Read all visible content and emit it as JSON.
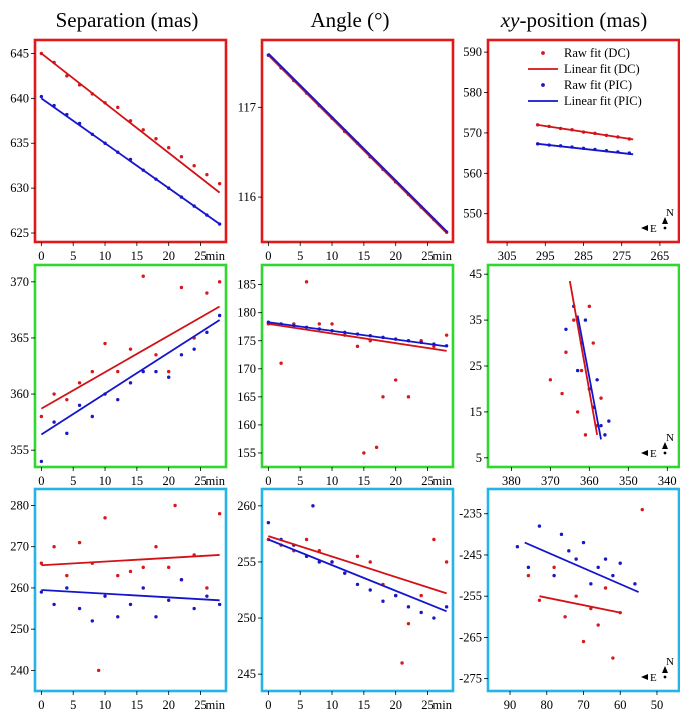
{
  "figure": {
    "columns": [
      {
        "title": "Separation (mas)"
      },
      {
        "title": "Angle (°)"
      },
      {
        "title": "xy-position (mas)",
        "title_italic_part": "xy",
        "title_rest": "-position (mas)"
      }
    ],
    "time_unit": "min",
    "row_frame_colors": [
      "#e0191b",
      "#2fd82f",
      "#23b4e8"
    ],
    "series_colors": {
      "raw_dc": "#d8181b",
      "lin_dc": "#d21216",
      "raw_pic": "#1818c8",
      "lin_pic": "#1515cc"
    },
    "legend": [
      "Raw fit (DC)",
      "Linear fit (DC)",
      "Raw fit (PIC)",
      "Linear fit (PIC)"
    ],
    "compass": {
      "north": "N",
      "east": "E"
    }
  },
  "chart_data": [
    {
      "id": "r0c0",
      "type": "scatter",
      "row": 0,
      "col": 0,
      "xlim": [
        -1,
        29
      ],
      "ylim": [
        624,
        646.5
      ],
      "xticks": [
        0,
        5,
        10,
        15,
        20,
        25
      ],
      "yticks": [
        625,
        630,
        635,
        640,
        645
      ],
      "series": [
        {
          "kind": "raw_dc",
          "x": [
            0,
            2,
            4,
            6,
            8,
            10,
            12,
            14,
            16,
            18,
            20,
            22,
            24,
            26,
            28
          ],
          "y": [
            645,
            644,
            642.5,
            641.5,
            640.5,
            639.5,
            639,
            637.5,
            636.5,
            635.5,
            634.5,
            633.5,
            632.5,
            631.5,
            630.5
          ]
        },
        {
          "kind": "raw_pic",
          "x": [
            0,
            2,
            4,
            6,
            8,
            10,
            12,
            14,
            16,
            18,
            20,
            22,
            24,
            26,
            28
          ],
          "y": [
            640.2,
            639.2,
            638.2,
            637.2,
            636,
            635,
            634,
            633.2,
            632,
            631,
            630,
            629,
            628,
            627,
            626
          ]
        },
        {
          "kind": "lin_dc",
          "x": [
            0,
            28
          ],
          "y": [
            645,
            629.5
          ]
        },
        {
          "kind": "lin_pic",
          "x": [
            0,
            28
          ],
          "y": [
            640,
            626
          ]
        }
      ]
    },
    {
      "id": "r0c1",
      "type": "scatter",
      "row": 0,
      "col": 1,
      "xlim": [
        -1,
        29
      ],
      "ylim": [
        115.5,
        117.75
      ],
      "xticks": [
        0,
        5,
        10,
        15,
        20,
        25
      ],
      "yticks": [
        116,
        117
      ],
      "series": [
        {
          "kind": "raw_dc",
          "x": [
            4,
            8,
            12,
            16,
            20,
            24
          ],
          "y": [
            117.3,
            117.02,
            116.73,
            116.45,
            116.17,
            115.89
          ]
        },
        {
          "kind": "raw_pic",
          "x": [
            0,
            2,
            4,
            6,
            8,
            10,
            12,
            14,
            16,
            18,
            20,
            22,
            24,
            26,
            28
          ],
          "y": [
            117.58,
            117.44,
            117.3,
            117.16,
            117.02,
            116.88,
            116.74,
            116.6,
            116.45,
            116.31,
            116.17,
            116.03,
            115.89,
            115.75,
            115.61
          ]
        },
        {
          "kind": "lin_dc",
          "x": [
            0,
            28
          ],
          "y": [
            117.58,
            115.6
          ]
        },
        {
          "kind": "lin_pic",
          "x": [
            0,
            28
          ],
          "y": [
            117.6,
            115.62
          ]
        }
      ]
    },
    {
      "id": "r0c2",
      "type": "scatter",
      "row": 0,
      "col": 2,
      "xlim": [
        310,
        260
      ],
      "ylim": [
        543,
        593
      ],
      "xticks": [
        305,
        295,
        285,
        275,
        265
      ],
      "yticks": [
        550,
        560,
        570,
        580,
        590
      ],
      "series": [
        {
          "kind": "raw_dc",
          "x": [
            297,
            294,
            291,
            288,
            285,
            282,
            279,
            276,
            273
          ],
          "y": [
            572,
            571.6,
            571.1,
            570.8,
            570.2,
            569.9,
            569.4,
            569,
            568.5
          ]
        },
        {
          "kind": "raw_pic",
          "x": [
            297,
            294,
            291,
            288,
            285,
            282,
            279,
            276,
            273
          ],
          "y": [
            567.3,
            567,
            566.8,
            566.5,
            566.2,
            565.9,
            565.6,
            565.3,
            565
          ]
        },
        {
          "kind": "lin_dc",
          "x": [
            297,
            272
          ],
          "y": [
            572,
            568.4
          ]
        },
        {
          "kind": "lin_pic",
          "x": [
            297,
            272
          ],
          "y": [
            567.3,
            564.7
          ]
        }
      ]
    },
    {
      "id": "r1c0",
      "type": "scatter",
      "row": 1,
      "col": 0,
      "xlim": [
        -1,
        29
      ],
      "ylim": [
        353.5,
        371.5
      ],
      "xticks": [
        0,
        5,
        10,
        15,
        20,
        25
      ],
      "yticks": [
        355,
        360,
        365,
        370
      ],
      "series": [
        {
          "kind": "raw_dc",
          "x": [
            0,
            2,
            4,
            6,
            8,
            10,
            12,
            14,
            16,
            18,
            20,
            22,
            24,
            26,
            28
          ],
          "y": [
            358,
            360,
            359.5,
            361,
            362,
            364.5,
            362,
            364,
            370.5,
            363.5,
            362,
            369.5,
            365,
            369,
            370
          ]
        },
        {
          "kind": "raw_pic",
          "x": [
            0,
            2,
            4,
            6,
            8,
            10,
            12,
            14,
            16,
            18,
            20,
            22,
            24,
            26,
            28
          ],
          "y": [
            354,
            357.5,
            356.5,
            359,
            358,
            360,
            359.5,
            361,
            362,
            362,
            361.5,
            363.5,
            364,
            365.5,
            367
          ]
        },
        {
          "kind": "lin_dc",
          "x": [
            0,
            28
          ],
          "y": [
            358.7,
            367.8
          ]
        },
        {
          "kind": "lin_pic",
          "x": [
            0,
            28
          ],
          "y": [
            356.4,
            366.6
          ]
        }
      ]
    },
    {
      "id": "r1c1",
      "type": "scatter",
      "row": 1,
      "col": 1,
      "xlim": [
        -1,
        29
      ],
      "ylim": [
        152.5,
        188.5
      ],
      "xticks": [
        0,
        5,
        10,
        15,
        20,
        25
      ],
      "yticks": [
        155,
        160,
        165,
        170,
        175,
        180,
        185
      ],
      "series": [
        {
          "kind": "raw_dc",
          "x": [
            0,
            2,
            4,
            6,
            8,
            10,
            12,
            14,
            15,
            16,
            17,
            18,
            20,
            22,
            24,
            26,
            28
          ],
          "y": [
            178,
            171,
            178,
            185.5,
            178,
            178,
            176,
            174,
            155,
            175,
            156,
            165,
            168,
            165,
            175,
            174,
            176
          ]
        },
        {
          "kind": "raw_pic",
          "x": [
            0,
            2,
            4,
            6,
            8,
            10,
            12,
            14,
            16,
            18,
            20,
            22,
            24,
            26,
            28
          ],
          "y": [
            178.3,
            178,
            177.7,
            177.4,
            177.1,
            176.8,
            176.5,
            176.2,
            175.9,
            175.6,
            175.3,
            175,
            174.7,
            174.4,
            174.1
          ]
        },
        {
          "kind": "lin_dc",
          "x": [
            0,
            28
          ],
          "y": [
            178,
            173.2
          ]
        },
        {
          "kind": "lin_pic",
          "x": [
            0,
            28
          ],
          "y": [
            178.3,
            174
          ]
        }
      ]
    },
    {
      "id": "r1c2",
      "type": "scatter",
      "row": 1,
      "col": 2,
      "xlim": [
        386,
        337
      ],
      "ylim": [
        3,
        47
      ],
      "xticks": [
        380,
        370,
        360,
        350,
        340
      ],
      "yticks": [
        5,
        15,
        25,
        35,
        45
      ],
      "series": [
        {
          "kind": "raw_dc",
          "x": [
            370,
            367,
            366,
            364,
            363,
            362,
            361,
            360,
            359,
            358,
            357
          ],
          "y": [
            22,
            19,
            28,
            35,
            15,
            24,
            10,
            38,
            30,
            12,
            18
          ]
        },
        {
          "kind": "raw_pic",
          "x": [
            366,
            364,
            363,
            362,
            361,
            360,
            359,
            358,
            357,
            356,
            355
          ],
          "y": [
            33,
            38,
            24,
            30,
            35,
            20,
            16,
            22,
            12,
            10,
            13
          ]
        },
        {
          "kind": "lin_dc",
          "x": [
            365,
            358
          ],
          "y": [
            43.5,
            10
          ]
        },
        {
          "kind": "lin_pic",
          "x": [
            363,
            357
          ],
          "y": [
            36,
            9
          ]
        }
      ]
    },
    {
      "id": "r2c0",
      "type": "scatter",
      "row": 2,
      "col": 0,
      "xlim": [
        -1,
        29
      ],
      "ylim": [
        235,
        284
      ],
      "xticks": [
        0,
        5,
        10,
        15,
        20,
        25
      ],
      "yticks": [
        240,
        250,
        260,
        270,
        280
      ],
      "series": [
        {
          "kind": "raw_dc",
          "x": [
            0,
            2,
            4,
            6,
            8,
            9,
            10,
            12,
            14,
            16,
            18,
            20,
            21,
            22,
            24,
            26,
            28
          ],
          "y": [
            266,
            270,
            263,
            271,
            266,
            240,
            277,
            263,
            264,
            265,
            270,
            265,
            280,
            262,
            268,
            260,
            278
          ]
        },
        {
          "kind": "raw_pic",
          "x": [
            0,
            2,
            4,
            6,
            8,
            10,
            12,
            14,
            16,
            18,
            20,
            22,
            24,
            26,
            28
          ],
          "y": [
            259,
            256,
            260,
            255,
            252,
            258,
            253,
            256,
            260,
            253,
            257,
            262,
            255,
            258,
            256
          ]
        },
        {
          "kind": "lin_dc",
          "x": [
            0,
            28
          ],
          "y": [
            265.5,
            268
          ]
        },
        {
          "kind": "lin_pic",
          "x": [
            0,
            28
          ],
          "y": [
            259.5,
            257
          ]
        }
      ]
    },
    {
      "id": "r2c1",
      "type": "scatter",
      "row": 2,
      "col": 1,
      "xlim": [
        -1,
        29
      ],
      "ylim": [
        243.5,
        261.5
      ],
      "xticks": [
        0,
        5,
        10,
        15,
        20,
        25
      ],
      "yticks": [
        245,
        250,
        255,
        260
      ],
      "series": [
        {
          "kind": "raw_dc",
          "x": [
            0,
            2,
            4,
            6,
            8,
            10,
            12,
            14,
            16,
            18,
            20,
            21,
            22,
            24,
            26,
            28
          ],
          "y": [
            257,
            256.5,
            256,
            257,
            256,
            255,
            254,
            255.5,
            255,
            253,
            252,
            246,
            249.5,
            252,
            257,
            255
          ]
        },
        {
          "kind": "raw_pic",
          "x": [
            0,
            2,
            4,
            6,
            7,
            8,
            10,
            12,
            14,
            16,
            18,
            20,
            22,
            24,
            26,
            28
          ],
          "y": [
            258.5,
            257,
            256.5,
            255.5,
            260,
            255,
            255,
            254,
            253,
            252.5,
            251.5,
            252,
            251,
            250.5,
            250,
            251
          ]
        },
        {
          "kind": "lin_dc",
          "x": [
            0,
            28
          ],
          "y": [
            257.3,
            252.2
          ]
        },
        {
          "kind": "lin_pic",
          "x": [
            0,
            28
          ],
          "y": [
            257,
            250.6
          ]
        }
      ]
    },
    {
      "id": "r2c2",
      "type": "scatter",
      "row": 2,
      "col": 2,
      "xlim": [
        96,
        44
      ],
      "ylim": [
        -278,
        -229
      ],
      "xticks": [
        90,
        80,
        70,
        60,
        50
      ],
      "yticks": [
        -235,
        -245,
        -255,
        -265,
        -275
      ],
      "series": [
        {
          "kind": "raw_dc",
          "x": [
            85,
            82,
            78,
            75,
            72,
            70,
            68,
            66,
            64,
            62,
            60,
            54
          ],
          "y": [
            -250,
            -256,
            -248,
            -260,
            -255,
            -266,
            -258,
            -262,
            -253,
            -270,
            -259,
            -234
          ]
        },
        {
          "kind": "raw_pic",
          "x": [
            88,
            85,
            82,
            78,
            76,
            74,
            72,
            70,
            68,
            66,
            64,
            62,
            60,
            56
          ],
          "y": [
            -243,
            -248,
            -238,
            -250,
            -240,
            -244,
            -246,
            -242,
            -252,
            -248,
            -246,
            -250,
            -247,
            -252
          ]
        },
        {
          "kind": "lin_dc",
          "x": [
            82,
            60
          ],
          "y": [
            -255,
            -259
          ]
        },
        {
          "kind": "lin_pic",
          "x": [
            86,
            55
          ],
          "y": [
            -242,
            -254
          ]
        }
      ]
    }
  ]
}
